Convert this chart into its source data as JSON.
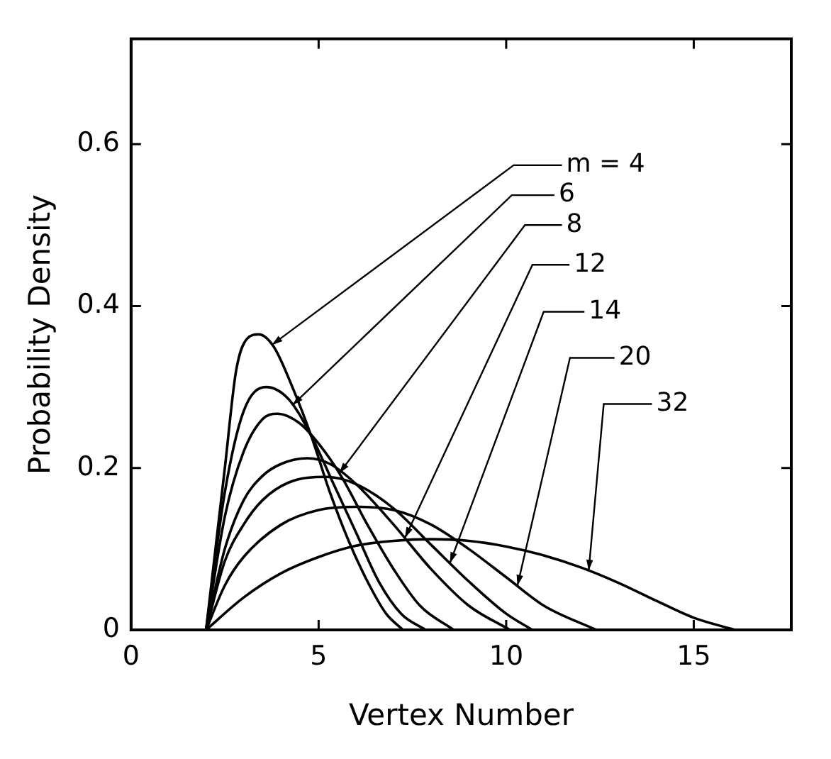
{
  "chart_data": {
    "type": "line",
    "xlabel": "Vertex Number",
    "ylabel": "Probability Density",
    "xlim": [
      0,
      17.6
    ],
    "ylim": [
      0,
      0.73
    ],
    "xticks": [
      0,
      5,
      10,
      15
    ],
    "yticks": [
      0,
      0.2,
      0.4,
      0.6
    ],
    "grid": false,
    "legend": false,
    "marker": "none",
    "line_style": "solid",
    "series": [
      {
        "name": "m = 4",
        "color": "#000000",
        "x": [
          2,
          2.5,
          2.8,
          3.1,
          3.4,
          3.8,
          4.3,
          4.8,
          5.3,
          5.8,
          6.3,
          6.8,
          7.25
        ],
        "values": [
          0,
          0.2,
          0.32,
          0.36,
          0.365,
          0.35,
          0.3,
          0.24,
          0.17,
          0.11,
          0.06,
          0.02,
          0
        ]
      },
      {
        "name": "6",
        "color": "#000000",
        "x": [
          2,
          2.5,
          3,
          3.6,
          4.2,
          4.8,
          5.4,
          6,
          6.6,
          7.2,
          7.85
        ],
        "values": [
          0,
          0.17,
          0.27,
          0.3,
          0.285,
          0.24,
          0.18,
          0.12,
          0.06,
          0.02,
          0
        ]
      },
      {
        "name": "8",
        "color": "#000000",
        "x": [
          2,
          2.5,
          3,
          3.5,
          3.9,
          4.5,
          5,
          5.6,
          6.3,
          7,
          7.7,
          8.6
        ],
        "values": [
          0,
          0.14,
          0.22,
          0.26,
          0.267,
          0.255,
          0.23,
          0.19,
          0.13,
          0.075,
          0.03,
          0
        ]
      },
      {
        "name": "12",
        "color": "#000000",
        "x": [
          2,
          2.5,
          3,
          3.5,
          4,
          4.7,
          5.3,
          6,
          7,
          8,
          9,
          10.1
        ],
        "values": [
          0,
          0.1,
          0.16,
          0.19,
          0.205,
          0.212,
          0.205,
          0.18,
          0.13,
          0.075,
          0.03,
          0
        ]
      },
      {
        "name": "14",
        "color": "#000000",
        "x": [
          2,
          2.5,
          3,
          3.5,
          4.2,
          5.2,
          6,
          7,
          8,
          9,
          10,
          10.7
        ],
        "values": [
          0,
          0.085,
          0.13,
          0.16,
          0.182,
          0.189,
          0.18,
          0.15,
          0.105,
          0.06,
          0.02,
          0
        ]
      },
      {
        "name": "20",
        "color": "#000000",
        "x": [
          2,
          2.5,
          3,
          4,
          5,
          6,
          7,
          8,
          9,
          10,
          11,
          12.4
        ],
        "values": [
          0,
          0.055,
          0.09,
          0.13,
          0.148,
          0.152,
          0.148,
          0.13,
          0.1,
          0.065,
          0.03,
          0
        ]
      },
      {
        "name": "32",
        "color": "#000000",
        "x": [
          2,
          3,
          4,
          5,
          6,
          7,
          8,
          9,
          10,
          11,
          12,
          13,
          14,
          15,
          16.1
        ],
        "values": [
          0,
          0.04,
          0.07,
          0.09,
          0.104,
          0.11,
          0.112,
          0.11,
          0.103,
          0.092,
          0.077,
          0.058,
          0.036,
          0.015,
          0
        ]
      }
    ]
  }
}
